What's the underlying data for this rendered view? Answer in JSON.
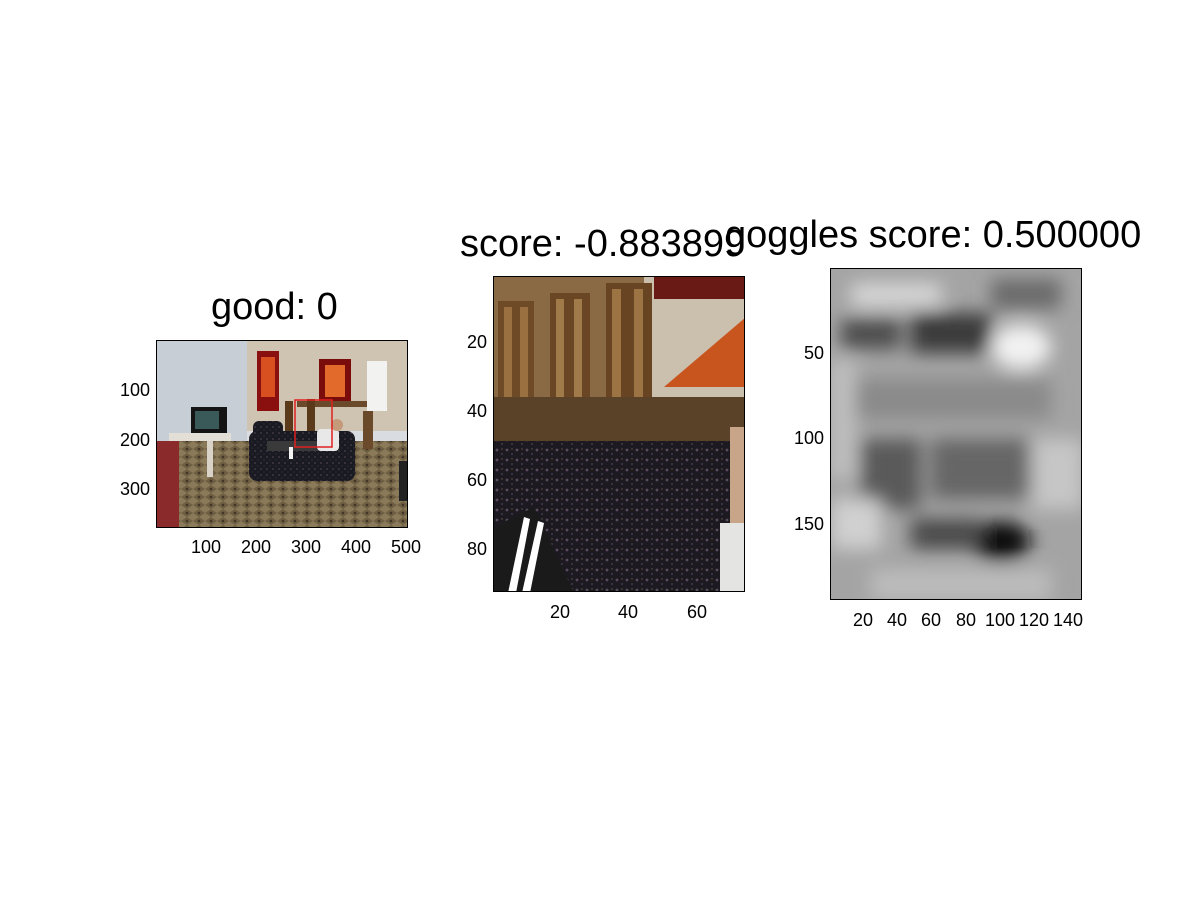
{
  "panels": [
    {
      "title": "good: 0",
      "xticks": [
        "100",
        "200",
        "300",
        "400",
        "500"
      ],
      "yticks": [
        "100",
        "200",
        "300"
      ],
      "image": "living room photo with person lying on couch, red detection box"
    },
    {
      "title": "score: -0.883899",
      "xticks": [
        "20",
        "40",
        "60"
      ],
      "yticks": [
        "20",
        "40",
        "60",
        "80"
      ],
      "image": "zoomed crop of chairs, patterned couch and person"
    },
    {
      "title": "goggles score: 0.500000",
      "xticks": [
        "20",
        "40",
        "60",
        "80",
        "100",
        "120",
        "140"
      ],
      "yticks": [
        "50",
        "100",
        "150"
      ],
      "image": "grayscale blurred response map"
    }
  ],
  "colors": {
    "detection_box": "#e02020"
  }
}
